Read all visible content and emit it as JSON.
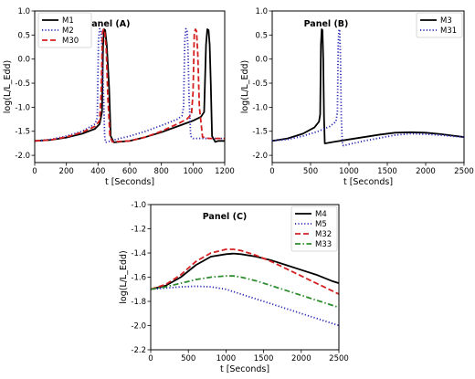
{
  "chart_data": [
    {
      "type": "line",
      "title": "Panel (A)",
      "xlabel": "t [Seconds]",
      "ylabel": "log(L/L_Edd)",
      "xlim": [
        0,
        1200
      ],
      "ylim": [
        -2.15,
        1.0
      ],
      "xticks": [
        "0",
        "200",
        "400",
        "600",
        "800",
        "1000",
        "1200"
      ],
      "yticks": [
        "1.0",
        "0.5",
        "0.0",
        "-0.5",
        "-1.0",
        "-1.5",
        "-2.0"
      ],
      "legend_position": "top-left",
      "series": [
        {
          "name": "M1",
          "color": "#000000",
          "style": "solid",
          "x": [
            0,
            100,
            200,
            300,
            380,
            410,
            425,
            432,
            438,
            445,
            455,
            470,
            480,
            500,
            600,
            700,
            800,
            900,
            1000,
            1050,
            1070,
            1082,
            1090,
            1098,
            1105,
            1112,
            1120,
            1140,
            1160,
            1200
          ],
          "y": [
            -1.7,
            -1.68,
            -1.63,
            -1.55,
            -1.45,
            -1.35,
            -1.1,
            0.3,
            0.62,
            0.6,
            0.3,
            -0.6,
            -1.6,
            -1.73,
            -1.7,
            -1.62,
            -1.52,
            -1.4,
            -1.28,
            -1.2,
            -1.1,
            0.3,
            0.62,
            0.6,
            0.3,
            -0.5,
            -1.6,
            -1.72,
            -1.7,
            -1.7
          ]
        },
        {
          "name": "M2",
          "color": "#2b2bb5",
          "style": "dotted",
          "x": [
            0,
            100,
            200,
            300,
            380,
            395,
            403,
            410,
            418,
            425,
            435,
            442,
            448,
            460,
            500,
            600,
            700,
            800,
            900,
            930,
            940,
            948,
            955,
            962,
            968,
            975,
            985,
            1000,
            1100,
            1200
          ],
          "y": [
            -1.7,
            -1.67,
            -1.6,
            -1.5,
            -1.35,
            -1.22,
            0.4,
            0.63,
            0.6,
            0.2,
            -0.8,
            -1.6,
            -1.73,
            -1.72,
            -1.68,
            -1.6,
            -1.5,
            -1.38,
            -1.25,
            -1.18,
            -1.0,
            0.4,
            0.63,
            0.6,
            0.2,
            -0.8,
            -1.6,
            -1.65,
            -1.65,
            -1.65
          ]
        },
        {
          "name": "M30",
          "color": "#d42020",
          "style": "dashed",
          "x": [
            0,
            100,
            200,
            300,
            380,
            410,
            420,
            428,
            435,
            442,
            452,
            462,
            475,
            490,
            600,
            700,
            800,
            900,
            960,
            990,
            1000,
            1008,
            1015,
            1022,
            1030,
            1040,
            1060,
            1100,
            1200
          ],
          "y": [
            -1.7,
            -1.68,
            -1.62,
            -1.52,
            -1.4,
            -1.28,
            -0.7,
            0.55,
            0.62,
            0.58,
            0.2,
            -0.8,
            -1.6,
            -1.72,
            -1.7,
            -1.62,
            -1.5,
            -1.35,
            -1.25,
            -1.15,
            -0.7,
            0.55,
            0.62,
            0.58,
            0.1,
            -1.0,
            -1.62,
            -1.65,
            -1.65
          ]
        }
      ]
    },
    {
      "type": "line",
      "title": "Panel (B)",
      "xlabel": "t [Seconds]",
      "ylabel": "log(L/L_Edd)",
      "xlim": [
        0,
        2500
      ],
      "ylim": [
        -2.15,
        1.0
      ],
      "xticks": [
        "0",
        "500",
        "1000",
        "1500",
        "2000",
        "2500"
      ],
      "yticks": [
        "1.0",
        "0.5",
        "0.0",
        "-0.5",
        "-1.0",
        "-1.5",
        "-2.0"
      ],
      "legend_position": "top-right",
      "series": [
        {
          "name": "M3",
          "color": "#000000",
          "style": "solid",
          "x": [
            0,
            200,
            400,
            550,
            610,
            625,
            635,
            645,
            655,
            665,
            675,
            685,
            700,
            800,
            1000,
            1200,
            1400,
            1600,
            1800,
            2000,
            2200,
            2400,
            2500
          ],
          "y": [
            -1.7,
            -1.65,
            -1.55,
            -1.42,
            -1.3,
            -1.15,
            0.3,
            0.62,
            0.6,
            0.0,
            -1.2,
            -1.75,
            -1.75,
            -1.72,
            -1.67,
            -1.62,
            -1.57,
            -1.53,
            -1.52,
            -1.53,
            -1.56,
            -1.6,
            -1.62
          ]
        },
        {
          "name": "M31",
          "color": "#2b2bb5",
          "style": "dotted",
          "x": [
            0,
            200,
            400,
            600,
            750,
            830,
            850,
            860,
            870,
            880,
            890,
            900,
            915,
            930,
            1000,
            1200,
            1400,
            1600,
            1800,
            2000,
            2200,
            2400,
            2500
          ],
          "y": [
            -1.7,
            -1.67,
            -1.6,
            -1.5,
            -1.4,
            -1.3,
            -1.1,
            0.3,
            0.62,
            0.6,
            0.0,
            -1.2,
            -1.78,
            -1.8,
            -1.77,
            -1.7,
            -1.64,
            -1.58,
            -1.55,
            -1.56,
            -1.58,
            -1.61,
            -1.62
          ]
        }
      ]
    },
    {
      "type": "line",
      "title": "Panel (C)",
      "xlabel": "t [Seconds]",
      "ylabel": "log(L/L_Edd)",
      "xlim": [
        0,
        2500
      ],
      "ylim": [
        -2.2,
        -1.0
      ],
      "xticks": [
        "0",
        "500",
        "1000",
        "1500",
        "2000",
        "2500"
      ],
      "yticks": [
        "-1.0",
        "-1.2",
        "-1.4",
        "-1.6",
        "-1.8",
        "-2.0",
        "-2.2"
      ],
      "legend_position": "top-right",
      "series": [
        {
          "name": "M4",
          "color": "#000000",
          "style": "solid",
          "x": [
            0,
            200,
            400,
            600,
            800,
            1000,
            1100,
            1200,
            1400,
            1600,
            1800,
            2000,
            2200,
            2400,
            2500
          ],
          "y": [
            -1.7,
            -1.67,
            -1.6,
            -1.5,
            -1.43,
            -1.41,
            -1.405,
            -1.41,
            -1.43,
            -1.46,
            -1.5,
            -1.54,
            -1.58,
            -1.63,
            -1.65
          ]
        },
        {
          "name": "M5",
          "color": "#2b2bb5",
          "style": "dotted",
          "x": [
            0,
            200,
            400,
            600,
            800,
            1000,
            1200,
            1400,
            1600,
            1800,
            2000,
            2200,
            2400,
            2500
          ],
          "y": [
            -1.7,
            -1.69,
            -1.68,
            -1.675,
            -1.68,
            -1.7,
            -1.74,
            -1.78,
            -1.82,
            -1.86,
            -1.9,
            -1.94,
            -1.98,
            -2.0
          ]
        },
        {
          "name": "M32",
          "color": "#d42020",
          "style": "dashed",
          "x": [
            0,
            200,
            400,
            600,
            800,
            1000,
            1100,
            1200,
            1400,
            1600,
            1800,
            2000,
            2200,
            2400,
            2500
          ],
          "y": [
            -1.7,
            -1.66,
            -1.58,
            -1.47,
            -1.4,
            -1.37,
            -1.37,
            -1.38,
            -1.42,
            -1.47,
            -1.53,
            -1.59,
            -1.65,
            -1.71,
            -1.74
          ]
        },
        {
          "name": "M33",
          "color": "#2e8b2e",
          "style": "dashdot",
          "x": [
            0,
            200,
            400,
            600,
            800,
            1000,
            1100,
            1200,
            1400,
            1600,
            1800,
            2000,
            2200,
            2400,
            2500
          ],
          "y": [
            -1.7,
            -1.68,
            -1.65,
            -1.62,
            -1.6,
            -1.59,
            -1.59,
            -1.6,
            -1.63,
            -1.67,
            -1.71,
            -1.75,
            -1.79,
            -1.83,
            -1.85
          ]
        }
      ]
    }
  ]
}
